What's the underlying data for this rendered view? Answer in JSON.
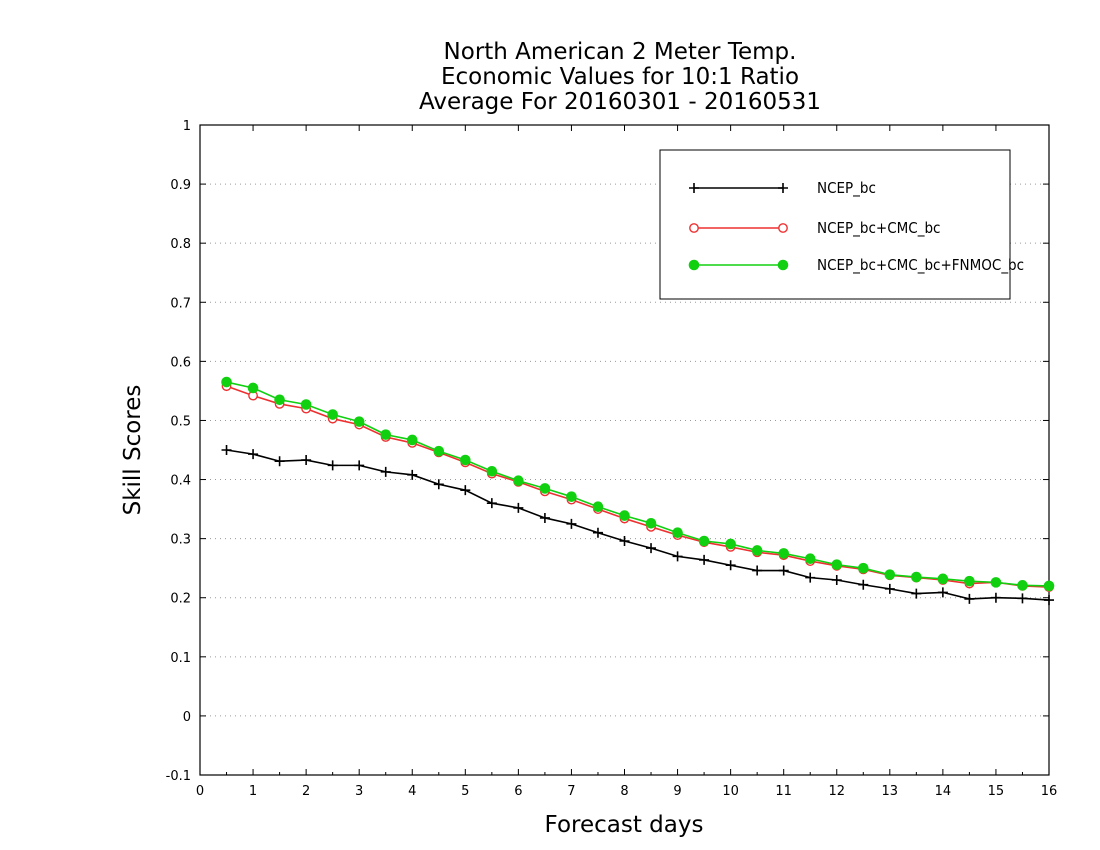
{
  "chart_data": {
    "type": "line",
    "title_lines": [
      "North American 2 Meter Temp.",
      "Economic Values for 10:1 Ratio",
      "Average For 20160301 - 20160531"
    ],
    "xlabel": "Forecast days",
    "ylabel": "Skill Scores",
    "xlim": [
      0,
      16
    ],
    "ylim": [
      -0.1,
      1
    ],
    "xticks": [
      "0",
      "1",
      "2",
      "3",
      "4",
      "5",
      "6",
      "7",
      "8",
      "9",
      "10",
      "11",
      "12",
      "13",
      "14",
      "15",
      "16"
    ],
    "yticks": [
      "-0.1",
      "0",
      "0.1",
      "0.2",
      "0.3",
      "0.4",
      "0.5",
      "0.6",
      "0.7",
      "0.8",
      "0.9",
      "1"
    ],
    "grid": "dotted horizontal",
    "legend_position": "top-right",
    "x": [
      0.5,
      1,
      1.5,
      2,
      2.5,
      3,
      3.5,
      4,
      4.5,
      5,
      5.5,
      6,
      6.5,
      7,
      7.5,
      8,
      8.5,
      9,
      9.5,
      10,
      10.5,
      11,
      11.5,
      12,
      12.5,
      13,
      13.5,
      14,
      14.5,
      15,
      15.5,
      16
    ],
    "series": [
      {
        "name": "NCEP_bc",
        "color": "#000000",
        "marker": "plus",
        "values": [
          0.45,
          0.443,
          0.431,
          0.433,
          0.424,
          0.424,
          0.413,
          0.408,
          0.392,
          0.382,
          0.36,
          0.352,
          0.335,
          0.325,
          0.31,
          0.296,
          0.284,
          0.27,
          0.264,
          0.255,
          0.246,
          0.246,
          0.234,
          0.23,
          0.222,
          0.215,
          0.207,
          0.209,
          0.198,
          0.2,
          0.199,
          0.196
        ]
      },
      {
        "name": "NCEP_bc+CMC_bc",
        "color": "#ee3030",
        "marker": "open-circle",
        "values": [
          0.558,
          0.542,
          0.528,
          0.52,
          0.503,
          0.493,
          0.472,
          0.462,
          0.446,
          0.429,
          0.41,
          0.396,
          0.38,
          0.366,
          0.35,
          0.334,
          0.32,
          0.306,
          0.294,
          0.286,
          0.277,
          0.272,
          0.262,
          0.254,
          0.248,
          0.238,
          0.234,
          0.23,
          0.224,
          0.226,
          0.22,
          0.218
        ]
      },
      {
        "name": "NCEP_bc+CMC_bc+FNMOC_bc",
        "color": "#10d010",
        "marker": "filled-circle",
        "values": [
          0.565,
          0.555,
          0.535,
          0.527,
          0.51,
          0.498,
          0.476,
          0.467,
          0.448,
          0.433,
          0.414,
          0.398,
          0.385,
          0.371,
          0.354,
          0.339,
          0.326,
          0.31,
          0.296,
          0.291,
          0.28,
          0.275,
          0.266,
          0.256,
          0.25,
          0.239,
          0.235,
          0.232,
          0.228,
          0.226,
          0.221,
          0.22
        ]
      }
    ]
  }
}
